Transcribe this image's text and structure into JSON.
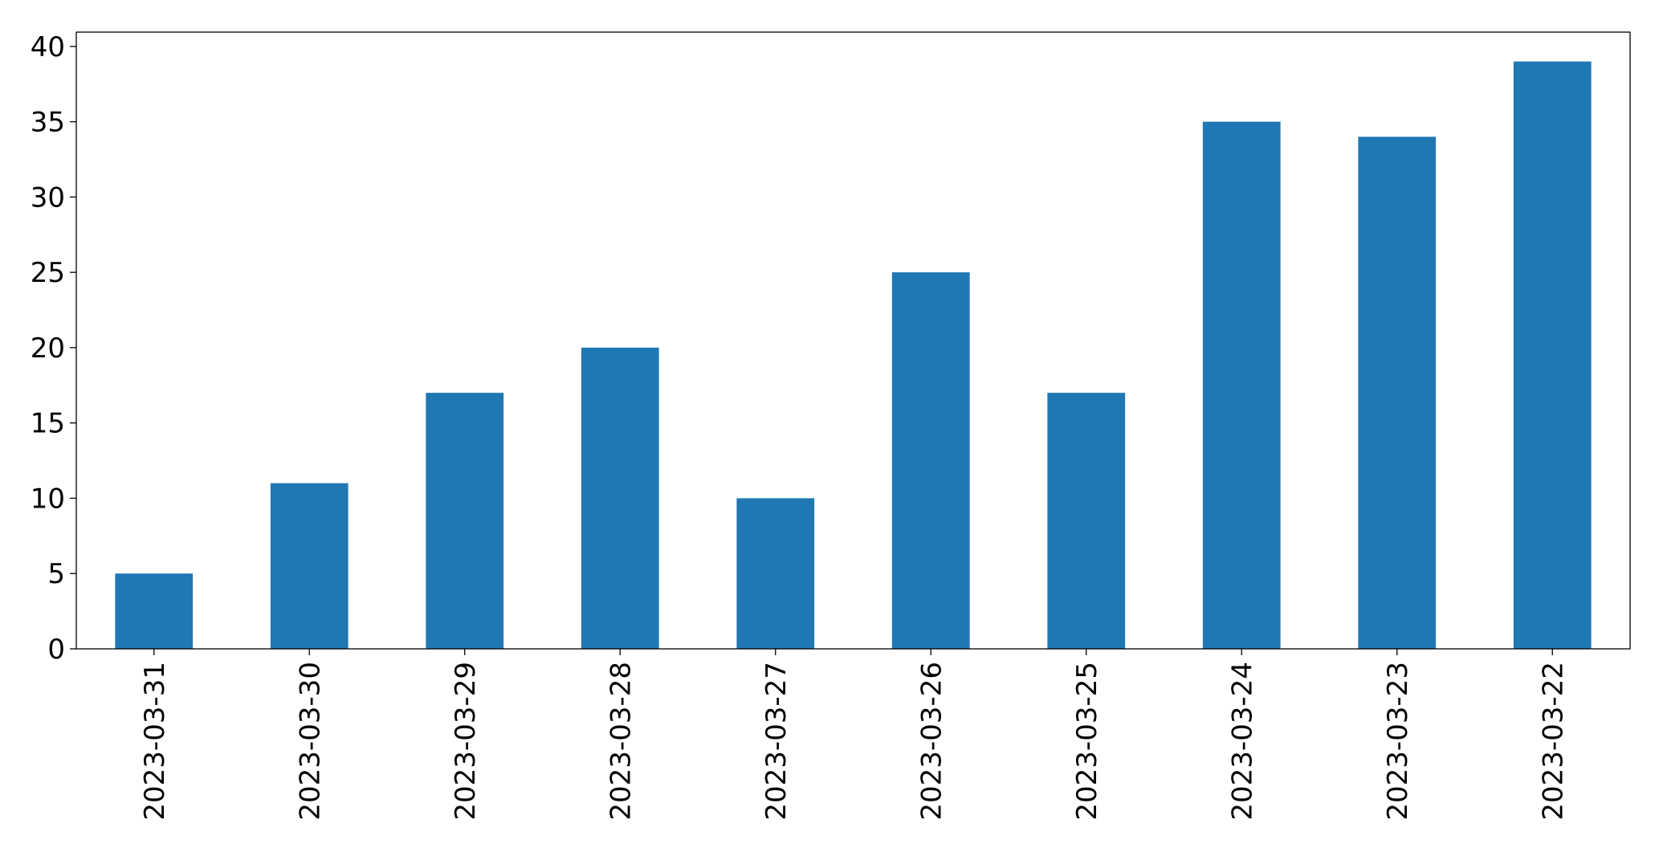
{
  "chart_data": {
    "type": "bar",
    "categories": [
      "2023-03-31",
      "2023-03-30",
      "2023-03-29",
      "2023-03-28",
      "2023-03-27",
      "2023-03-26",
      "2023-03-25",
      "2023-03-24",
      "2023-03-23",
      "2023-03-22"
    ],
    "values": [
      5,
      11,
      17,
      20,
      10,
      25,
      17,
      35,
      34,
      39
    ],
    "color": "#1f77b4",
    "ylim": [
      0,
      40.95
    ],
    "yticks": [
      0,
      5,
      10,
      15,
      20,
      25,
      30,
      35,
      40
    ],
    "grid": false
  }
}
